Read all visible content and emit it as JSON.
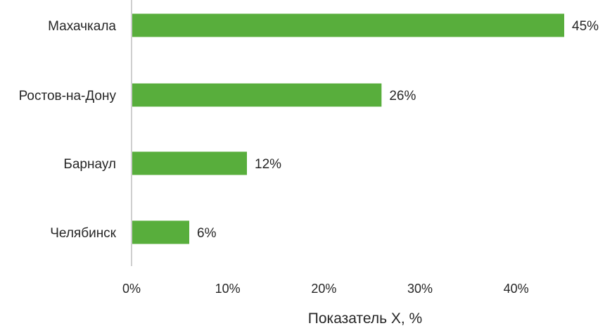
{
  "chart_data": {
    "type": "bar",
    "orientation": "horizontal",
    "categories": [
      "Махачкала",
      "Ростов-на-Дону",
      "Барнаул",
      "Челябинск"
    ],
    "values": [
      45,
      26,
      12,
      6
    ],
    "value_labels": [
      "45%",
      "26%",
      "12%",
      "6%"
    ],
    "xlabel": "Показатель Х, %",
    "ylabel": "",
    "xlim": [
      0,
      45
    ],
    "x_ticks": [
      0,
      10,
      20,
      30,
      40
    ],
    "x_tick_labels": [
      "0%",
      "10%",
      "20%",
      "30%",
      "40%"
    ],
    "grid": false,
    "legend": "none",
    "bar_color": "#58AE3C",
    "axis_color": "#bfbfbf",
    "text_color": "#262626"
  }
}
